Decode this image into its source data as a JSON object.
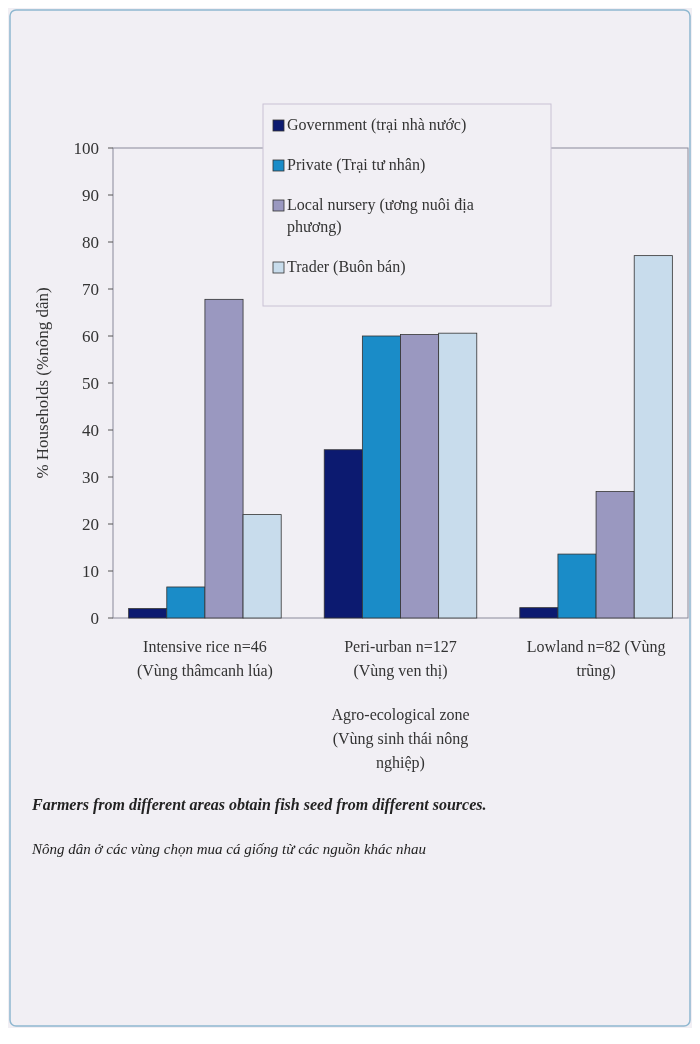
{
  "chart_data": {
    "type": "bar",
    "xlabel": "Agro-ecological zone (Vùng sinh thái nông nghiệp)",
    "ylabel": "% Households (%nông dân)",
    "categories": [
      "Intensive rice n=46 (Vùng thâmcanh lúa)",
      "Peri-urban n=127 (Vùng ven thị)",
      "Lowland n=82 (Vùng trũng)"
    ],
    "series": [
      {
        "name": "Government (trại nhà nước)",
        "color": "#0c1a70",
        "values": [
          2,
          35.8,
          2.2
        ]
      },
      {
        "name": "Private (Trại tư nhân)",
        "color": "#1a8cc8",
        "values": [
          6.6,
          60,
          13.6
        ]
      },
      {
        "name": "Local nursery (ương nuôi địa phương)",
        "color": "#9a98c0",
        "values": [
          67.8,
          60.3,
          26.9
        ]
      },
      {
        "name": "Trader (Buôn bán)",
        "color": "#c8dcec",
        "values": [
          22,
          60.6,
          77.1
        ]
      }
    ],
    "ylim": [
      0,
      100
    ],
    "yticks": [
      0,
      10,
      20,
      30,
      40,
      50,
      60,
      70,
      80,
      90,
      100
    ],
    "grid": false,
    "legend": "top",
    "annotations": [
      "Farmers from different areas obtain fish seed from different sources.",
      "Nông dân ở các vùng chọn mua cá giống từ các nguồn khác nhau"
    ]
  }
}
